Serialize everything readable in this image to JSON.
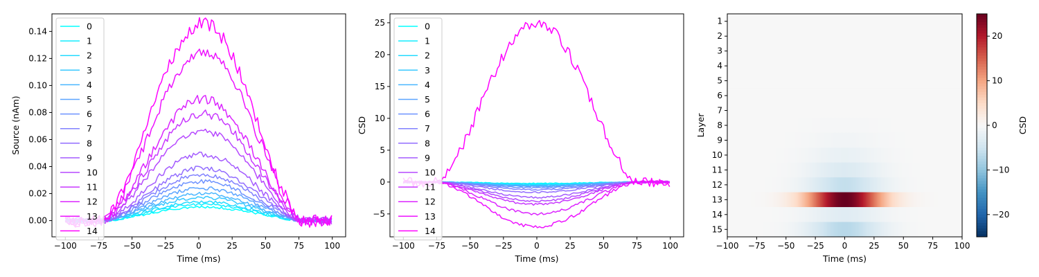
{
  "chart_data": [
    {
      "type": "line",
      "xlabel": "Time (ms)",
      "ylabel": "Source (nAm)",
      "xlim": [
        -110,
        110
      ],
      "ylim": [
        -0.012,
        0.153
      ],
      "xticks": [
        -100,
        -75,
        -50,
        -25,
        0,
        25,
        50,
        75,
        100
      ],
      "xticklabels": [
        "−100",
        "−75",
        "−50",
        "−25",
        "0",
        "25",
        "50",
        "75",
        "100"
      ],
      "yticks": [
        0.0,
        0.02,
        0.04,
        0.06,
        0.08,
        0.1,
        0.12,
        0.14
      ],
      "yticklabels": [
        "0.00",
        "0.02",
        "0.04",
        "0.06",
        "0.08",
        "0.10",
        "0.12",
        "0.14"
      ],
      "legend": [
        "0",
        "1",
        "2",
        "3",
        "4",
        "5",
        "6",
        "7",
        "8",
        "9",
        "10",
        "11",
        "12",
        "13",
        "14"
      ],
      "legend_loc": "upper left",
      "time_window": [
        -100,
        100
      ],
      "onset_ms": -75,
      "offset_ms": 75,
      "peaks": [
        0.01,
        0.012,
        0.014,
        0.017,
        0.02,
        0.024,
        0.029,
        0.034,
        0.039,
        0.049,
        0.066,
        0.079,
        0.09,
        0.125,
        0.146
      ]
    },
    {
      "type": "line",
      "xlabel": "Time (ms)",
      "ylabel": "CSD",
      "xlim": [
        -110,
        110
      ],
      "ylim": [
        -8.6,
        26.4
      ],
      "xticks": [
        -100,
        -75,
        -50,
        -25,
        0,
        25,
        50,
        75,
        100
      ],
      "xticklabels": [
        "−100",
        "−75",
        "−50",
        "−25",
        "0",
        "25",
        "50",
        "75",
        "100"
      ],
      "yticks": [
        -5,
        0,
        5,
        10,
        15,
        20,
        25
      ],
      "yticklabels": [
        "−5",
        "0",
        "5",
        "10",
        "15",
        "20",
        "25"
      ],
      "legend": [
        "0",
        "1",
        "2",
        "3",
        "4",
        "5",
        "6",
        "7",
        "8",
        "9",
        "10",
        "11",
        "12",
        "13",
        "14"
      ],
      "legend_loc": "upper left",
      "time_window": [
        -100,
        100
      ],
      "peaks": [
        -0.2,
        -0.3,
        -0.4,
        -0.5,
        -0.6,
        -0.7,
        -0.9,
        -1.2,
        -1.6,
        -2.4,
        -3.0,
        -3.5,
        -5.0,
        -7.0,
        25.0
      ]
    },
    {
      "type": "heatmap",
      "xlabel": "Time (ms)",
      "ylabel": "Layer",
      "xlim": [
        -100,
        100
      ],
      "xticks": [
        -100,
        -75,
        -50,
        -25,
        0,
        25,
        50,
        75,
        100
      ],
      "xticklabels": [
        "−100",
        "−75",
        "−50",
        "−25",
        "0",
        "25",
        "50",
        "75",
        "100"
      ],
      "yticklabels": [
        "1",
        "2",
        "3",
        "4",
        "5",
        "6",
        "7",
        "8",
        "9",
        "10",
        "11",
        "12",
        "13",
        "14",
        "15"
      ],
      "colormap": "RdBu_r",
      "colorbar_label": "CSD",
      "clim": [
        -25,
        25
      ],
      "colorbar_ticks": [
        -20,
        -10,
        0,
        10,
        20
      ],
      "colorbar_ticklabels": [
        "−20",
        "−10",
        "0",
        "10",
        "20"
      ],
      "layer_peaks": [
        0,
        0,
        0,
        0,
        0,
        0,
        0,
        -0.3,
        -0.8,
        -1.8,
        -3.5,
        -6.0,
        25.0,
        -3.0,
        -7.0
      ]
    }
  ]
}
